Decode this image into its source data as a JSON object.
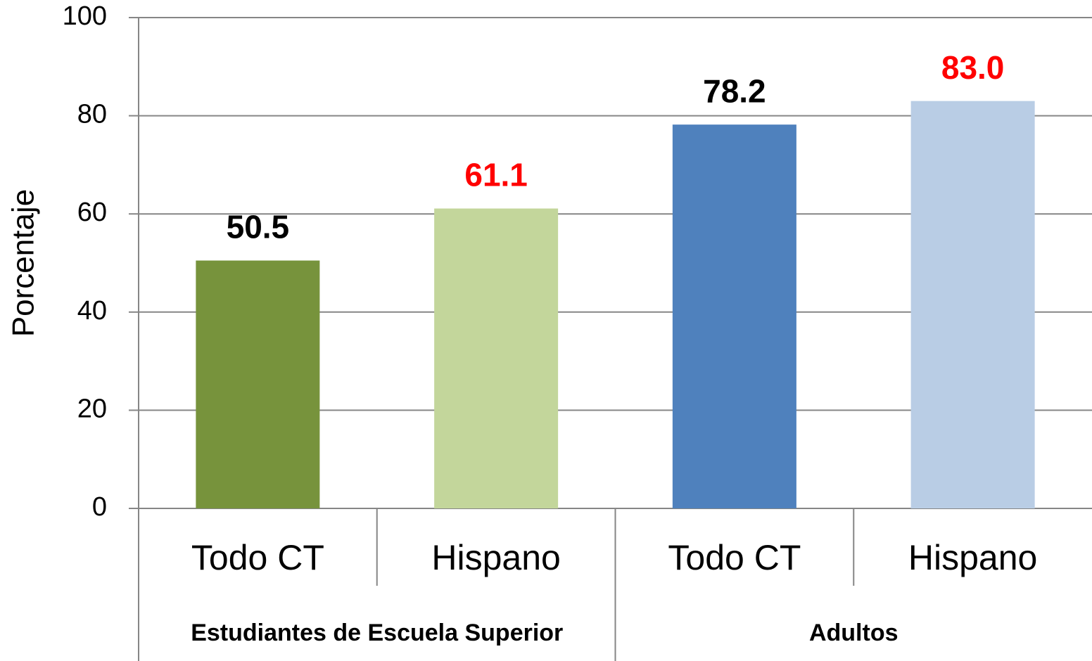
{
  "chart_data": {
    "type": "bar",
    "y_label": "Porcentaje",
    "categories": [
      "Todo CT",
      "Hispano",
      "Todo CT",
      "Hispano"
    ],
    "groups": [
      "Estudiantes de Escuela Superior",
      "Adultos"
    ],
    "values": [
      50.5,
      61.1,
      78.2,
      83.0
    ],
    "value_labels": [
      "50.5",
      "61.1",
      "78.2",
      "83.0"
    ],
    "colors": [
      "#77933c",
      "#c3d69b",
      "#4f81bd",
      "#b9cde5"
    ],
    "value_label_colors": [
      "#000000",
      "#ff0000",
      "#000000",
      "#ff0000"
    ],
    "ylim": [
      0,
      100
    ],
    "yticks": [
      0,
      20,
      40,
      60,
      80,
      100
    ],
    "grid": true
  }
}
